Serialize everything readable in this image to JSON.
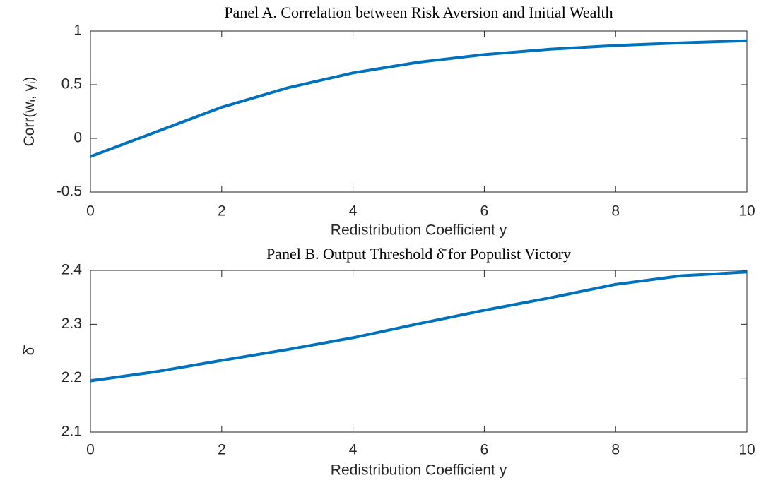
{
  "chart_data": [
    {
      "type": "line",
      "title": "Panel A. Correlation between Risk Aversion and Initial Wealth",
      "xlabel": "Redistribution Coefficient y",
      "ylabel": [
        "Corr(w",
        "i",
        ", ",
        "γ",
        "i",
        ")"
      ],
      "x": [
        0,
        1,
        2,
        3,
        4,
        5,
        6,
        7,
        8,
        9,
        10
      ],
      "series": [
        {
          "color": "#0072bd",
          "values": [
            -0.17,
            0.06,
            0.29,
            0.47,
            0.61,
            0.71,
            0.78,
            0.83,
            0.865,
            0.89,
            0.91
          ]
        }
      ],
      "xlim": [
        0,
        10
      ],
      "xticks": [
        0,
        2,
        4,
        6,
        8,
        10
      ],
      "ylim": [
        -0.5,
        1
      ],
      "yticks": [
        -0.5,
        0,
        0.5,
        1
      ]
    },
    {
      "type": "line",
      "title": "Panel B. Output Threshold δ̄ for Populist Victory",
      "xlabel": "Redistribution Coefficient y",
      "ylabel": [
        "δ̄"
      ],
      "x": [
        0,
        1,
        2,
        3,
        4,
        5,
        6,
        7,
        8,
        9,
        10
      ],
      "series": [
        {
          "color": "#0072bd",
          "values": [
            2.195,
            2.212,
            2.233,
            2.253,
            2.275,
            2.301,
            2.326,
            2.349,
            2.374,
            2.39,
            2.397
          ]
        }
      ],
      "xlim": [
        0,
        10
      ],
      "xticks": [
        0,
        2,
        4,
        6,
        8,
        10
      ],
      "ylim": [
        2.1,
        2.4
      ],
      "yticks": [
        2.1,
        2.2,
        2.3,
        2.4
      ]
    }
  ]
}
